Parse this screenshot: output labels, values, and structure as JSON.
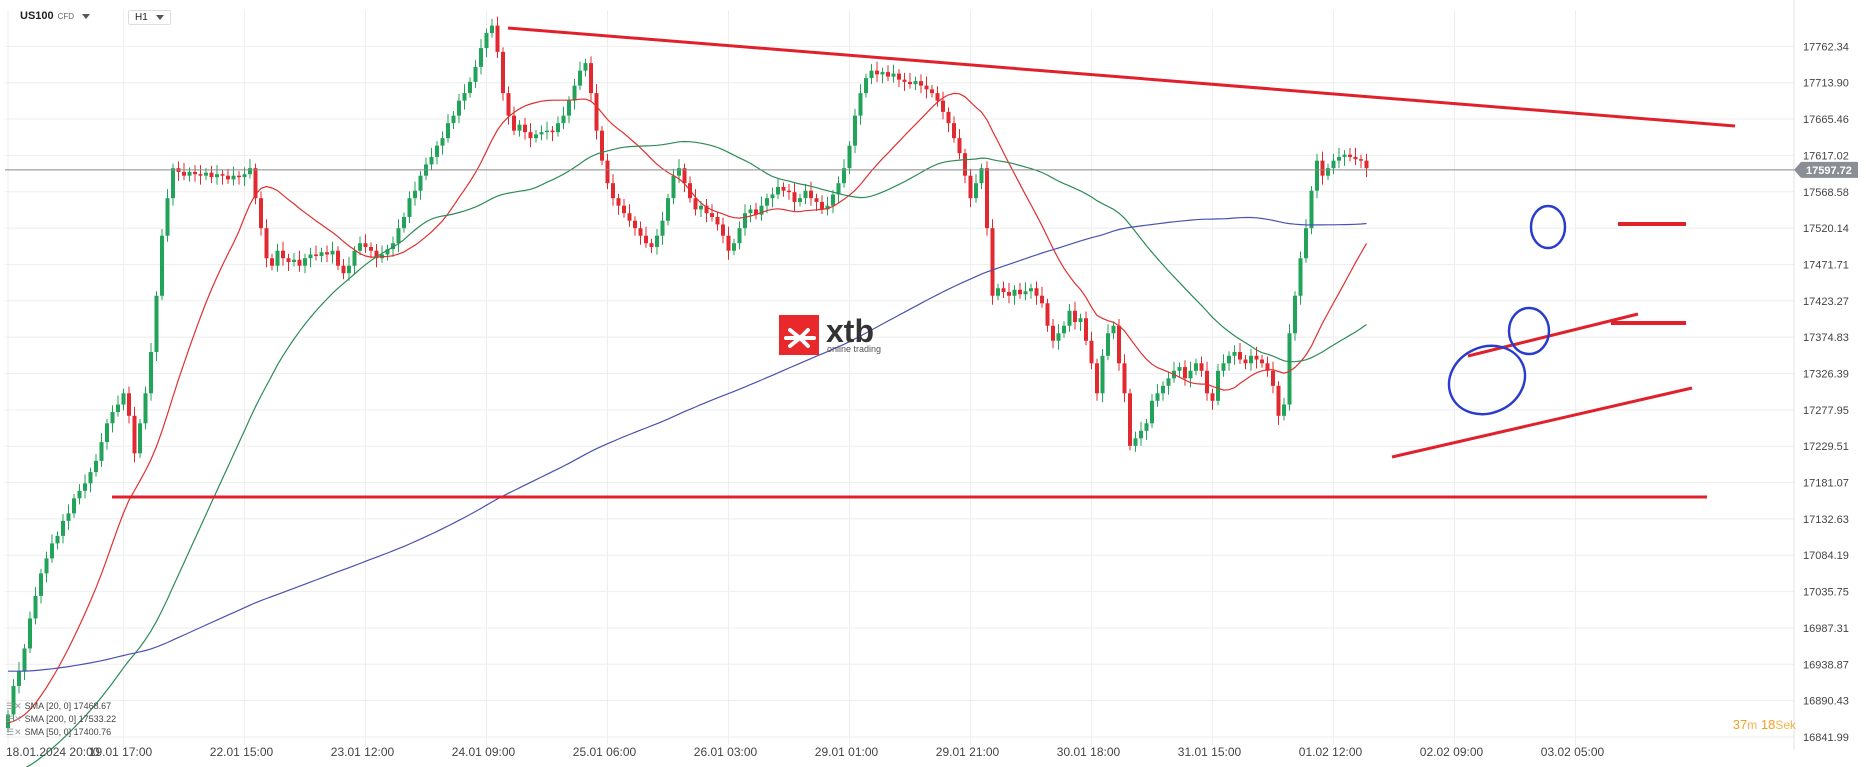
{
  "header": {
    "symbol": "US100",
    "instrument_type": "CFD",
    "timeframe": "H1"
  },
  "watermark": {
    "brand": "xtb",
    "tagline": "online trading",
    "brand_color": "#e8282b"
  },
  "timer": {
    "minutes": "37",
    "minutes_unit": "m",
    "seconds": "18",
    "seconds_unit": "Sek"
  },
  "indicators": [
    {
      "label": "SMA [20, 0] 17468.67",
      "color": "#e03030"
    },
    {
      "label": "SMA [200, 0] 17533.22",
      "color": "#4a52b0"
    },
    {
      "label": "SMA [50, 0] 17400.76",
      "color": "#2e8b57"
    }
  ],
  "chart_data": {
    "type": "candlestick",
    "symbol": "US100",
    "timeframe": "H1",
    "y_ticks": [
      17762.34,
      17713.9,
      17665.46,
      17617.02,
      17568.58,
      17520.14,
      17471.71,
      17423.27,
      17374.83,
      17326.39,
      17277.95,
      17229.51,
      17181.07,
      17132.63,
      17084.19,
      17035.75,
      16987.31,
      16938.87,
      16890.43,
      16841.99
    ],
    "ylim": [
      16841.99,
      17810.78
    ],
    "x_ticks": [
      "18.01.2024  20:00",
      "19.01  17:00",
      "22.01  15:00",
      "23.01  12:00",
      "24.01  09:00",
      "25.01  06:00",
      "26.01  03:00",
      "29.01  01:00",
      "29.01  21:00",
      "30.01  18:00",
      "31.01  15:00",
      "01.02  12:00",
      "02.02  09:00",
      "03.02  05:00"
    ],
    "x_tick_index": [
      0,
      21,
      43,
      65,
      87,
      109,
      131,
      153,
      175,
      197,
      219,
      241,
      263,
      285
    ],
    "current_price": "17597.72",
    "grid": true,
    "closes": [
      16872,
      16910,
      16930,
      16960,
      17000,
      17030,
      17060,
      17080,
      17100,
      17110,
      17130,
      17140,
      17160,
      17170,
      17180,
      17195,
      17210,
      17235,
      17260,
      17275,
      17285,
      17300,
      17270,
      17220,
      17260,
      17300,
      17355,
      17430,
      17510,
      17560,
      17600,
      17595,
      17590,
      17595,
      17592,
      17590,
      17594,
      17588,
      17592,
      17590,
      17585,
      17590,
      17588,
      17592,
      17600,
      17560,
      17520,
      17480,
      17470,
      17490,
      17480,
      17475,
      17478,
      17470,
      17480,
      17485,
      17483,
      17488,
      17485,
      17490,
      17470,
      17460,
      17470,
      17490,
      17500,
      17495,
      17490,
      17480,
      17485,
      17492,
      17500,
      17520,
      17535,
      17560,
      17570,
      17590,
      17605,
      17615,
      17630,
      17640,
      17660,
      17670,
      17690,
      17700,
      17715,
      17735,
      17760,
      17780,
      17790,
      17755,
      17700,
      17670,
      17650,
      17658,
      17648,
      17640,
      17645,
      17648,
      17650,
      17648,
      17660,
      17670,
      17690,
      17710,
      17730,
      17740,
      17700,
      17650,
      17610,
      17580,
      17560,
      17550,
      17540,
      17530,
      17520,
      17510,
      17500,
      17495,
      17510,
      17530,
      17560,
      17590,
      17600,
      17580,
      17560,
      17545,
      17550,
      17540,
      17535,
      17525,
      17510,
      17490,
      17500,
      17520,
      17540,
      17545,
      17538,
      17550,
      17560,
      17565,
      17575,
      17570,
      17568,
      17555,
      17560,
      17570,
      17560,
      17555,
      17545,
      17550,
      17565,
      17580,
      17600,
      17630,
      17670,
      17700,
      17720,
      17730,
      17725,
      17728,
      17722,
      17726,
      17718,
      17715,
      17712,
      17716,
      17710,
      17705,
      17700,
      17690,
      17675,
      17660,
      17640,
      17620,
      17590,
      17560,
      17580,
      17600,
      17520,
      17430,
      17440,
      17435,
      17430,
      17438,
      17432,
      17436,
      17440,
      17430,
      17420,
      17390,
      17370,
      17380,
      17390,
      17410,
      17395,
      17400,
      17370,
      17340,
      17300,
      17350,
      17380,
      17390,
      17340,
      17300,
      17230,
      17240,
      17250,
      17260,
      17290,
      17300,
      17310,
      17320,
      17330,
      17335,
      17320,
      17330,
      17340,
      17330,
      17300,
      17290,
      17330,
      17340,
      17350,
      17355,
      17345,
      17340,
      17350,
      17345,
      17340,
      17330,
      17310,
      17270,
      17285,
      17380,
      17430,
      17480,
      17520,
      17570,
      17610,
      17590,
      17600,
      17610,
      17615,
      17618,
      17615,
      17612,
      17610,
      17600
    ]
  }
}
